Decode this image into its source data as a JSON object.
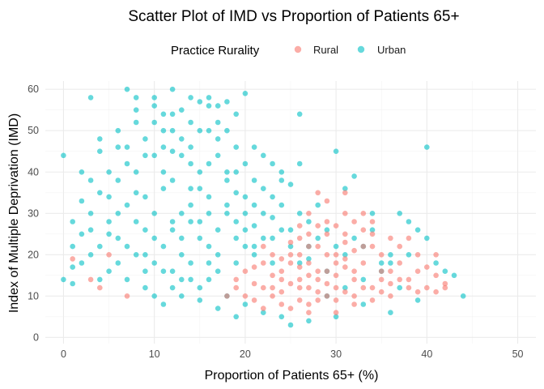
{
  "chart_data": {
    "type": "scatter",
    "title": "Scatter Plot of IMD vs Proportion of Patients 65+",
    "xlabel": "Proportion of Patients 65+ (%)",
    "ylabel": "Index of Multiple Deprivation (IMD)",
    "xlim": [
      -2,
      52
    ],
    "ylim": [
      -1.5,
      62
    ],
    "x_ticks": [
      0,
      10,
      20,
      30,
      40,
      50
    ],
    "y_ticks": [
      0,
      10,
      20,
      30,
      40,
      50,
      60
    ],
    "grid": true,
    "legend": {
      "title": "Practice Rurality",
      "position": "top",
      "entries": [
        "Rural",
        "Urban"
      ]
    },
    "colors": {
      "Rural": "#F8766D",
      "Urban": "#00BFC4"
    },
    "point_alpha": 0.6,
    "series": [
      {
        "name": "Rural",
        "color": "#F8766D",
        "points": [
          [
            26,
            14
          ],
          [
            27,
            12
          ],
          [
            28,
            16
          ],
          [
            25,
            18
          ],
          [
            24,
            11
          ],
          [
            29,
            13
          ],
          [
            30,
            15
          ],
          [
            31,
            17
          ],
          [
            26,
            20
          ],
          [
            27,
            22
          ],
          [
            28,
            9
          ],
          [
            29,
            10
          ],
          [
            23,
            15
          ],
          [
            22,
            12
          ],
          [
            32,
            14
          ],
          [
            33,
            18
          ],
          [
            34,
            22
          ],
          [
            35,
            16
          ],
          [
            36,
            13
          ],
          [
            37,
            18
          ],
          [
            38,
            24
          ],
          [
            39,
            20
          ],
          [
            40,
            17
          ],
          [
            41,
            20
          ],
          [
            42,
            13
          ],
          [
            30,
            27
          ],
          [
            31,
            25
          ],
          [
            32,
            28
          ],
          [
            33,
            30
          ],
          [
            34,
            25
          ],
          [
            27,
            30
          ],
          [
            26,
            27
          ],
          [
            28,
            35
          ],
          [
            29,
            33
          ],
          [
            31,
            35
          ],
          [
            20,
            16
          ],
          [
            21,
            9
          ],
          [
            19,
            12
          ],
          [
            18,
            10
          ],
          [
            22,
            7
          ],
          [
            25,
            7
          ],
          [
            27,
            8
          ],
          [
            30,
            6
          ],
          [
            32,
            8
          ],
          [
            34,
            12
          ],
          [
            36,
            10
          ],
          [
            38,
            12
          ],
          [
            40,
            12
          ],
          [
            41,
            11
          ],
          [
            42,
            12
          ],
          [
            39,
            16
          ],
          [
            37,
            22
          ],
          [
            35,
            20
          ],
          [
            33,
            26
          ],
          [
            31,
            23
          ],
          [
            29,
            28
          ],
          [
            27,
            25
          ],
          [
            25,
            23
          ],
          [
            23,
            20
          ],
          [
            21,
            17
          ],
          [
            24,
            16
          ],
          [
            26,
            9
          ],
          [
            28,
            11
          ],
          [
            30,
            12
          ],
          [
            32,
            10
          ],
          [
            34,
            9
          ],
          [
            36,
            16
          ],
          [
            38,
            14
          ],
          [
            29,
            20
          ],
          [
            31,
            19
          ],
          [
            25,
            13
          ],
          [
            27,
            15
          ],
          [
            23,
            10
          ],
          [
            24,
            14
          ],
          [
            28,
            14
          ],
          [
            30,
            18
          ],
          [
            32,
            16
          ],
          [
            33,
            12
          ],
          [
            35,
            14
          ],
          [
            31,
            11
          ],
          [
            26,
            17
          ],
          [
            29,
            16
          ],
          [
            27,
            18
          ],
          [
            25,
            20
          ],
          [
            28,
            22
          ],
          [
            30,
            20
          ],
          [
            33,
            22
          ],
          [
            24,
            19
          ],
          [
            26,
            24
          ],
          [
            29,
            25
          ],
          [
            22,
            22
          ],
          [
            21,
            13
          ],
          [
            20,
            10
          ],
          [
            19,
            14
          ],
          [
            31,
            30
          ],
          [
            34,
            28
          ],
          [
            36,
            24
          ],
          [
            30,
            9
          ],
          [
            27,
            6
          ],
          [
            24,
            8
          ],
          [
            23,
            12
          ],
          [
            22,
            18
          ],
          [
            35,
            11
          ],
          [
            37,
            14
          ],
          [
            39,
            11
          ],
          [
            41,
            15
          ],
          [
            28,
            27
          ],
          [
            32,
            21
          ],
          [
            26,
            12
          ],
          [
            5,
            20
          ],
          [
            4,
            12
          ],
          [
            7,
            10
          ],
          [
            1,
            19
          ],
          [
            3,
            14
          ]
        ]
      },
      {
        "name": "Urban",
        "color": "#00BFC4",
        "points": [
          [
            10,
            30
          ],
          [
            12,
            28
          ],
          [
            14,
            32
          ],
          [
            8,
            35
          ],
          [
            9,
            26
          ],
          [
            11,
            40
          ],
          [
            13,
            24
          ],
          [
            15,
            36
          ],
          [
            16,
            22
          ],
          [
            7,
            42
          ],
          [
            6,
            30
          ],
          [
            5,
            25
          ],
          [
            12,
            45
          ],
          [
            14,
            42
          ],
          [
            9,
            48
          ],
          [
            11,
            50
          ],
          [
            13,
            55
          ],
          [
            15,
            57
          ],
          [
            8,
            55
          ],
          [
            10,
            58
          ],
          [
            16,
            58
          ],
          [
            17,
            56
          ],
          [
            6,
            50
          ],
          [
            4,
            45
          ],
          [
            3,
            38
          ],
          [
            2,
            33
          ],
          [
            1,
            28
          ],
          [
            0,
            44
          ],
          [
            3,
            58
          ],
          [
            7,
            60
          ],
          [
            12,
            60
          ],
          [
            20,
            59
          ],
          [
            17,
            48
          ],
          [
            18,
            40
          ],
          [
            19,
            35
          ],
          [
            20,
            30
          ],
          [
            21,
            27
          ],
          [
            22,
            24
          ],
          [
            23,
            29
          ],
          [
            24,
            32
          ],
          [
            25,
            37
          ],
          [
            26,
            30
          ],
          [
            27,
            28
          ],
          [
            28,
            32
          ],
          [
            29,
            26
          ],
          [
            30,
            45
          ],
          [
            31,
            36
          ],
          [
            32,
            39
          ],
          [
            34,
            30
          ],
          [
            36,
            20
          ],
          [
            38,
            28
          ],
          [
            40,
            46
          ],
          [
            44,
            10
          ],
          [
            43,
            15
          ],
          [
            41,
            18
          ],
          [
            39,
            26
          ],
          [
            37,
            30
          ],
          [
            35,
            18
          ],
          [
            33,
            22
          ],
          [
            31,
            20
          ],
          [
            29,
            16
          ],
          [
            27,
            19
          ],
          [
            25,
            22
          ],
          [
            23,
            18
          ],
          [
            21,
            20
          ],
          [
            19,
            18
          ],
          [
            17,
            16
          ],
          [
            15,
            12
          ],
          [
            13,
            10
          ],
          [
            11,
            8
          ],
          [
            9,
            12
          ],
          [
            7,
            14
          ],
          [
            5,
            16
          ],
          [
            3,
            20
          ],
          [
            1,
            22
          ],
          [
            2,
            18
          ],
          [
            4,
            22
          ],
          [
            6,
            24
          ],
          [
            8,
            20
          ],
          [
            10,
            18
          ],
          [
            12,
            16
          ],
          [
            14,
            18
          ],
          [
            16,
            14
          ],
          [
            18,
            10
          ],
          [
            20,
            8
          ],
          [
            22,
            6
          ],
          [
            24,
            5
          ],
          [
            19,
            5
          ],
          [
            17,
            7
          ],
          [
            15,
            9
          ],
          [
            13,
            14
          ],
          [
            11,
            16
          ],
          [
            9,
            20
          ],
          [
            7,
            22
          ],
          [
            5,
            28
          ],
          [
            3,
            30
          ],
          [
            1,
            13
          ],
          [
            0,
            14
          ],
          [
            2,
            25
          ],
          [
            4,
            35
          ],
          [
            6,
            38
          ],
          [
            8,
            40
          ],
          [
            10,
            44
          ],
          [
            12,
            38
          ],
          [
            14,
            36
          ],
          [
            16,
            34
          ],
          [
            18,
            30
          ],
          [
            20,
            26
          ],
          [
            22,
            36
          ],
          [
            24,
            40
          ],
          [
            26,
            42
          ],
          [
            28,
            24
          ],
          [
            30,
            22
          ],
          [
            32,
            24
          ],
          [
            34,
            26
          ],
          [
            36,
            18
          ],
          [
            38,
            20
          ],
          [
            40,
            24
          ],
          [
            42,
            16
          ],
          [
            39,
            9
          ],
          [
            36,
            6
          ],
          [
            33,
            8
          ],
          [
            30,
            5
          ],
          [
            27,
            4
          ],
          [
            25,
            3
          ],
          [
            29,
            10
          ],
          [
            31,
            12
          ],
          [
            33,
            14
          ],
          [
            35,
            16
          ],
          [
            37,
            12
          ],
          [
            26,
            18
          ],
          [
            24,
            26
          ],
          [
            22,
            30
          ],
          [
            20,
            34
          ],
          [
            18,
            38
          ],
          [
            16,
            42
          ],
          [
            14,
            46
          ],
          [
            12,
            50
          ],
          [
            10,
            52
          ],
          [
            8,
            52
          ],
          [
            6,
            46
          ],
          [
            4,
            48
          ],
          [
            2,
            40
          ],
          [
            5,
            34
          ],
          [
            7,
            32
          ],
          [
            9,
            34
          ],
          [
            11,
            36
          ],
          [
            13,
            30
          ],
          [
            15,
            28
          ],
          [
            17,
            26
          ],
          [
            19,
            24
          ],
          [
            21,
            22
          ],
          [
            23,
            24
          ],
          [
            25,
            26
          ],
          [
            27,
            22
          ],
          [
            9,
            16
          ],
          [
            11,
            22
          ],
          [
            13,
            20
          ],
          [
            15,
            24
          ],
          [
            17,
            20
          ],
          [
            19,
            28
          ],
          [
            21,
            32
          ],
          [
            23,
            34
          ],
          [
            10,
            24
          ],
          [
            12,
            26
          ],
          [
            14,
            28
          ],
          [
            16,
            30
          ],
          [
            18,
            32
          ],
          [
            20,
            22
          ],
          [
            14,
            14
          ],
          [
            16,
            18
          ],
          [
            12,
            12
          ],
          [
            10,
            10
          ],
          [
            8,
            28
          ],
          [
            6,
            18
          ],
          [
            4,
            14
          ],
          [
            3,
            26
          ],
          [
            1,
            17
          ],
          [
            15,
            40
          ],
          [
            13,
            44
          ],
          [
            17,
            44
          ],
          [
            19,
            46
          ],
          [
            21,
            46
          ],
          [
            18,
            50
          ],
          [
            16,
            50
          ],
          [
            14,
            52
          ],
          [
            12,
            54
          ],
          [
            10,
            56
          ],
          [
            9,
            44
          ],
          [
            7,
            46
          ],
          [
            5,
            40
          ],
          [
            11,
            46
          ],
          [
            13,
            48
          ],
          [
            15,
            50
          ],
          [
            17,
            52
          ],
          [
            19,
            54
          ],
          [
            8,
            58
          ],
          [
            14,
            58
          ],
          [
            16,
            56
          ],
          [
            18,
            57
          ],
          [
            11,
            54
          ],
          [
            26,
            54
          ],
          [
            20,
            42
          ],
          [
            22,
            44
          ],
          [
            24,
            38
          ],
          [
            19,
            40
          ],
          [
            21,
            38
          ],
          [
            23,
            42
          ]
        ]
      }
    ]
  }
}
